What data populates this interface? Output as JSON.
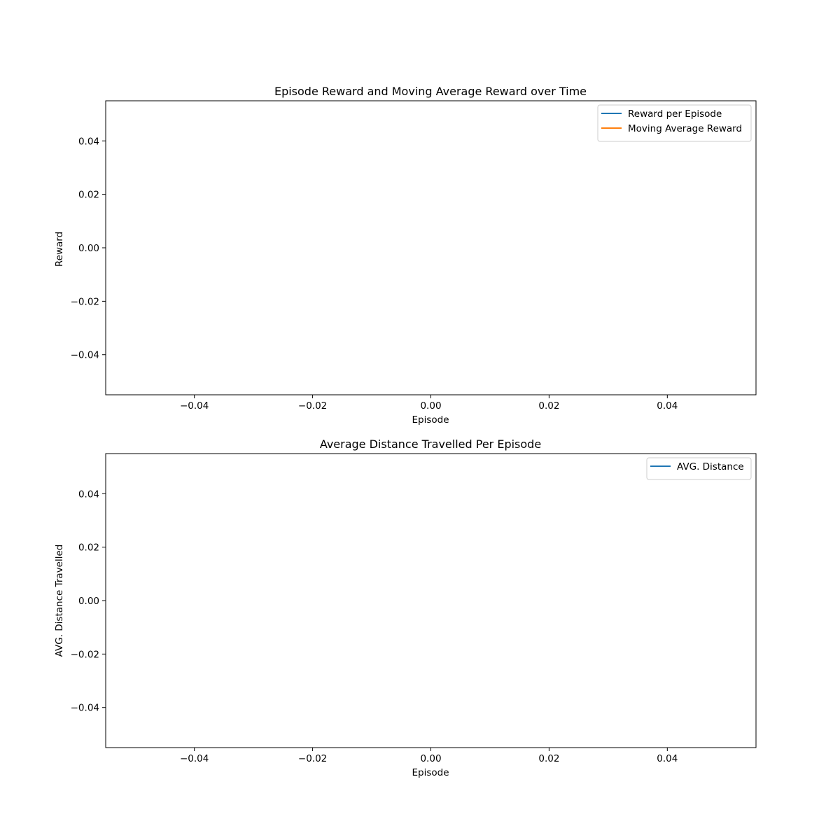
{
  "chart_data": [
    {
      "type": "line",
      "title": "Episode Reward and Moving Average Reward over Time",
      "xlabel": "Episode",
      "ylabel": "Reward",
      "xlim": [
        -0.055,
        0.055
      ],
      "ylim": [
        -0.055,
        0.055
      ],
      "xticks": [
        "−0.04",
        "−0.02",
        "0.00",
        "0.02",
        "0.04"
      ],
      "yticks": [
        "0.04",
        "0.02",
        "0.00",
        "−0.02",
        "−0.04"
      ],
      "grid": false,
      "legend_position": "upper right",
      "series": [
        {
          "name": "Reward per Episode",
          "color": "#1f77b4",
          "x": [],
          "y": []
        },
        {
          "name": "Moving Average Reward",
          "color": "#ff7f0e",
          "x": [],
          "y": []
        }
      ]
    },
    {
      "type": "line",
      "title": "Average Distance Travelled Per Episode",
      "xlabel": "Episode",
      "ylabel": "AVG. Distance Travelled",
      "xlim": [
        -0.055,
        0.055
      ],
      "ylim": [
        -0.055,
        0.055
      ],
      "xticks": [
        "−0.04",
        "−0.02",
        "0.00",
        "0.02",
        "0.04"
      ],
      "yticks": [
        "0.04",
        "0.02",
        "0.00",
        "−0.02",
        "−0.04"
      ],
      "grid": false,
      "legend_position": "upper right",
      "series": [
        {
          "name": "AVG. Distance",
          "color": "#1f77b4",
          "x": [],
          "y": []
        }
      ]
    }
  ]
}
